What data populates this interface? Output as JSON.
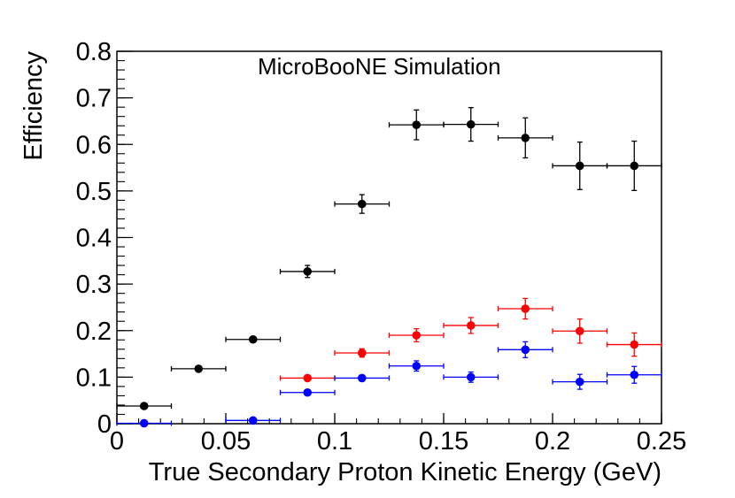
{
  "chart_data": {
    "type": "scatter",
    "title": "MicroBooNE Simulation",
    "xlabel": "True Secondary Proton Kinetic Energy (GeV)",
    "ylabel": "Efficiency",
    "xlim": [
      0,
      0.25
    ],
    "ylim": [
      0,
      0.8
    ],
    "xticks": [
      {
        "value": 0,
        "label": "0"
      },
      {
        "value": 0.05,
        "label": "0.05"
      },
      {
        "value": 0.1,
        "label": "0.1"
      },
      {
        "value": 0.15,
        "label": "0.15"
      },
      {
        "value": 0.2,
        "label": "0.2"
      },
      {
        "value": 0.25,
        "label": "0.25"
      }
    ],
    "yticks": [
      {
        "value": 0,
        "label": "0"
      },
      {
        "value": 0.1,
        "label": "0.1"
      },
      {
        "value": 0.2,
        "label": "0.2"
      },
      {
        "value": 0.3,
        "label": "0.3"
      },
      {
        "value": 0.4,
        "label": "0.4"
      },
      {
        "value": 0.5,
        "label": "0.5"
      },
      {
        "value": 0.6,
        "label": "0.6"
      },
      {
        "value": 0.7,
        "label": "0.7"
      },
      {
        "value": 0.8,
        "label": "0.8"
      }
    ],
    "grid": false,
    "legend": "none",
    "series": [
      {
        "color": "#000000",
        "points": [
          {
            "x": 0.0125,
            "y": 0.038,
            "xerr": 0.0125,
            "yerr": 0.004
          },
          {
            "x": 0.0375,
            "y": 0.118,
            "xerr": 0.0125,
            "yerr": 0.004
          },
          {
            "x": 0.0625,
            "y": 0.181,
            "xerr": 0.0125,
            "yerr": 0.005
          },
          {
            "x": 0.0875,
            "y": 0.327,
            "xerr": 0.0125,
            "yerr": 0.013
          },
          {
            "x": 0.1125,
            "y": 0.472,
            "xerr": 0.0125,
            "yerr": 0.02
          },
          {
            "x": 0.1375,
            "y": 0.642,
            "xerr": 0.0125,
            "yerr": 0.032
          },
          {
            "x": 0.1625,
            "y": 0.643,
            "xerr": 0.0125,
            "yerr": 0.036
          },
          {
            "x": 0.1875,
            "y": 0.614,
            "xerr": 0.0125,
            "yerr": 0.043
          },
          {
            "x": 0.2125,
            "y": 0.554,
            "xerr": 0.0125,
            "yerr": 0.051
          },
          {
            "x": 0.2375,
            "y": 0.554,
            "xerr": 0.0125,
            "yerr": 0.053
          }
        ]
      },
      {
        "color": "#ff0000",
        "points": [
          {
            "x": 0.0875,
            "y": 0.098,
            "xerr": 0.0125,
            "yerr": 0.004
          },
          {
            "x": 0.1125,
            "y": 0.152,
            "xerr": 0.0125,
            "yerr": 0.009
          },
          {
            "x": 0.1375,
            "y": 0.19,
            "xerr": 0.0125,
            "yerr": 0.014
          },
          {
            "x": 0.1625,
            "y": 0.211,
            "xerr": 0.0125,
            "yerr": 0.017
          },
          {
            "x": 0.1875,
            "y": 0.247,
            "xerr": 0.0125,
            "yerr": 0.022
          },
          {
            "x": 0.2125,
            "y": 0.199,
            "xerr": 0.0125,
            "yerr": 0.026
          },
          {
            "x": 0.2375,
            "y": 0.17,
            "xerr": 0.0125,
            "yerr": 0.025
          }
        ]
      },
      {
        "color": "#0000ff",
        "points": [
          {
            "x": 0.0125,
            "y": 0.001,
            "xerr": 0.0125,
            "yerr": 0.0
          },
          {
            "x": 0.0625,
            "y": 0.007,
            "xerr": 0.0125,
            "yerr": 0.002
          },
          {
            "x": 0.0875,
            "y": 0.067,
            "xerr": 0.0125,
            "yerr": 0.004
          },
          {
            "x": 0.1125,
            "y": 0.098,
            "xerr": 0.0125,
            "yerr": 0.006
          },
          {
            "x": 0.1375,
            "y": 0.124,
            "xerr": 0.0125,
            "yerr": 0.011
          },
          {
            "x": 0.1625,
            "y": 0.1,
            "xerr": 0.0125,
            "yerr": 0.011
          },
          {
            "x": 0.1875,
            "y": 0.159,
            "xerr": 0.0125,
            "yerr": 0.017
          },
          {
            "x": 0.2125,
            "y": 0.09,
            "xerr": 0.0125,
            "yerr": 0.016
          },
          {
            "x": 0.2375,
            "y": 0.105,
            "xerr": 0.0125,
            "yerr": 0.018
          }
        ]
      }
    ]
  }
}
